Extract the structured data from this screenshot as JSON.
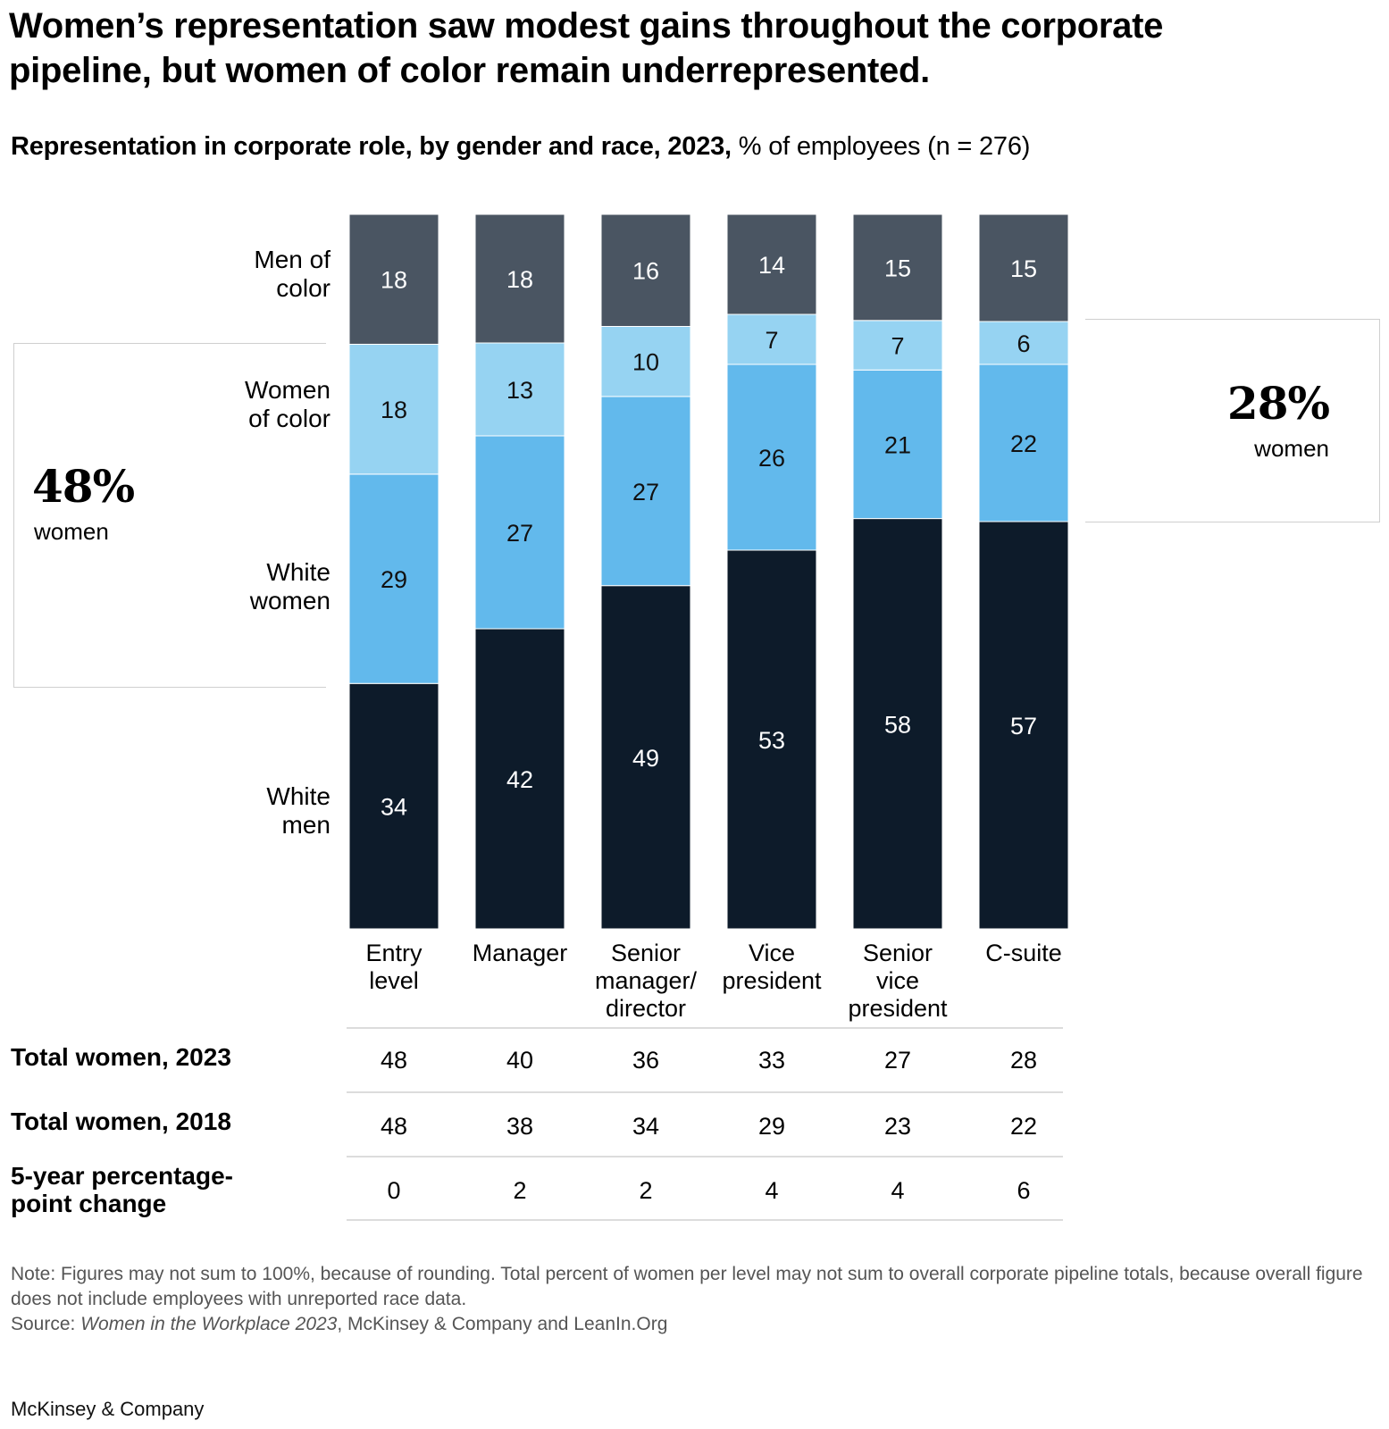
{
  "header": {
    "title": "Women’s representation saw modest gains throughout the corporate pipeline, but women of color remain underrepresented.",
    "subtitle_bold": "Representation in corporate role, by gender and race, 2023,",
    "subtitle_regular": " % of employees (n = 276)"
  },
  "callouts": {
    "left": {
      "value": "48%",
      "label": "women"
    },
    "right": {
      "value": "28%",
      "label": "women"
    }
  },
  "colors": {
    "men_of_color": "#4a5562",
    "women_of_color": "#96d3f2",
    "white_women": "#62b9ec",
    "white_men": "#0d1b2a"
  },
  "chart_data": {
    "type": "bar",
    "stacked": true,
    "title": "Representation in corporate role, by gender and race, 2023",
    "ylabel": "% of employees",
    "xlabel": "",
    "ylim": [
      0,
      100
    ],
    "categories": [
      "Entry level",
      "Manager",
      "Senior manager/ director",
      "Vice president",
      "Senior vice president",
      "C-suite"
    ],
    "category_lines": [
      [
        "Entry",
        "level"
      ],
      [
        "Manager"
      ],
      [
        "Senior",
        "manager/",
        "director"
      ],
      [
        "Vice",
        "president"
      ],
      [
        "Senior",
        "vice",
        "president"
      ],
      [
        "C-suite"
      ]
    ],
    "series": [
      {
        "name": "White men",
        "label_lines": [
          "White",
          "men"
        ],
        "key": "white_men",
        "values": [
          34,
          42,
          49,
          53,
          58,
          57
        ]
      },
      {
        "name": "White women",
        "label_lines": [
          "White",
          "women"
        ],
        "key": "white_women",
        "values": [
          29,
          27,
          27,
          26,
          21,
          22
        ]
      },
      {
        "name": "Women of color",
        "label_lines": [
          "Women",
          "of color"
        ],
        "key": "women_of_color",
        "values": [
          18,
          13,
          10,
          7,
          7,
          6
        ]
      },
      {
        "name": "Men of color",
        "label_lines": [
          "Men of",
          "color"
        ],
        "key": "men_of_color",
        "values": [
          18,
          18,
          16,
          14,
          15,
          15
        ]
      }
    ],
    "legend": "left",
    "grid": false
  },
  "table": {
    "rows": [
      {
        "label": "Total women, 2023",
        "values": [
          48,
          40,
          36,
          33,
          27,
          28
        ]
      },
      {
        "label": "Total women, 2018",
        "values": [
          48,
          38,
          34,
          29,
          23,
          22
        ]
      },
      {
        "label_lines": [
          "5-year percentage-",
          "point change"
        ],
        "values": [
          0,
          2,
          2,
          4,
          4,
          6
        ]
      }
    ]
  },
  "footer": {
    "note": "Note: Figures may not sum to 100%, because of rounding. Total percent of women per level may not sum to overall corporate pipeline totals, because overall figure does not include employees with unreported race data.",
    "source_prefix": "Source: ",
    "source_title": "Women in the Workplace 2023",
    "source_rest": ", McKinsey & Company and LeanIn.Org",
    "brand": "McKinsey & Company"
  }
}
